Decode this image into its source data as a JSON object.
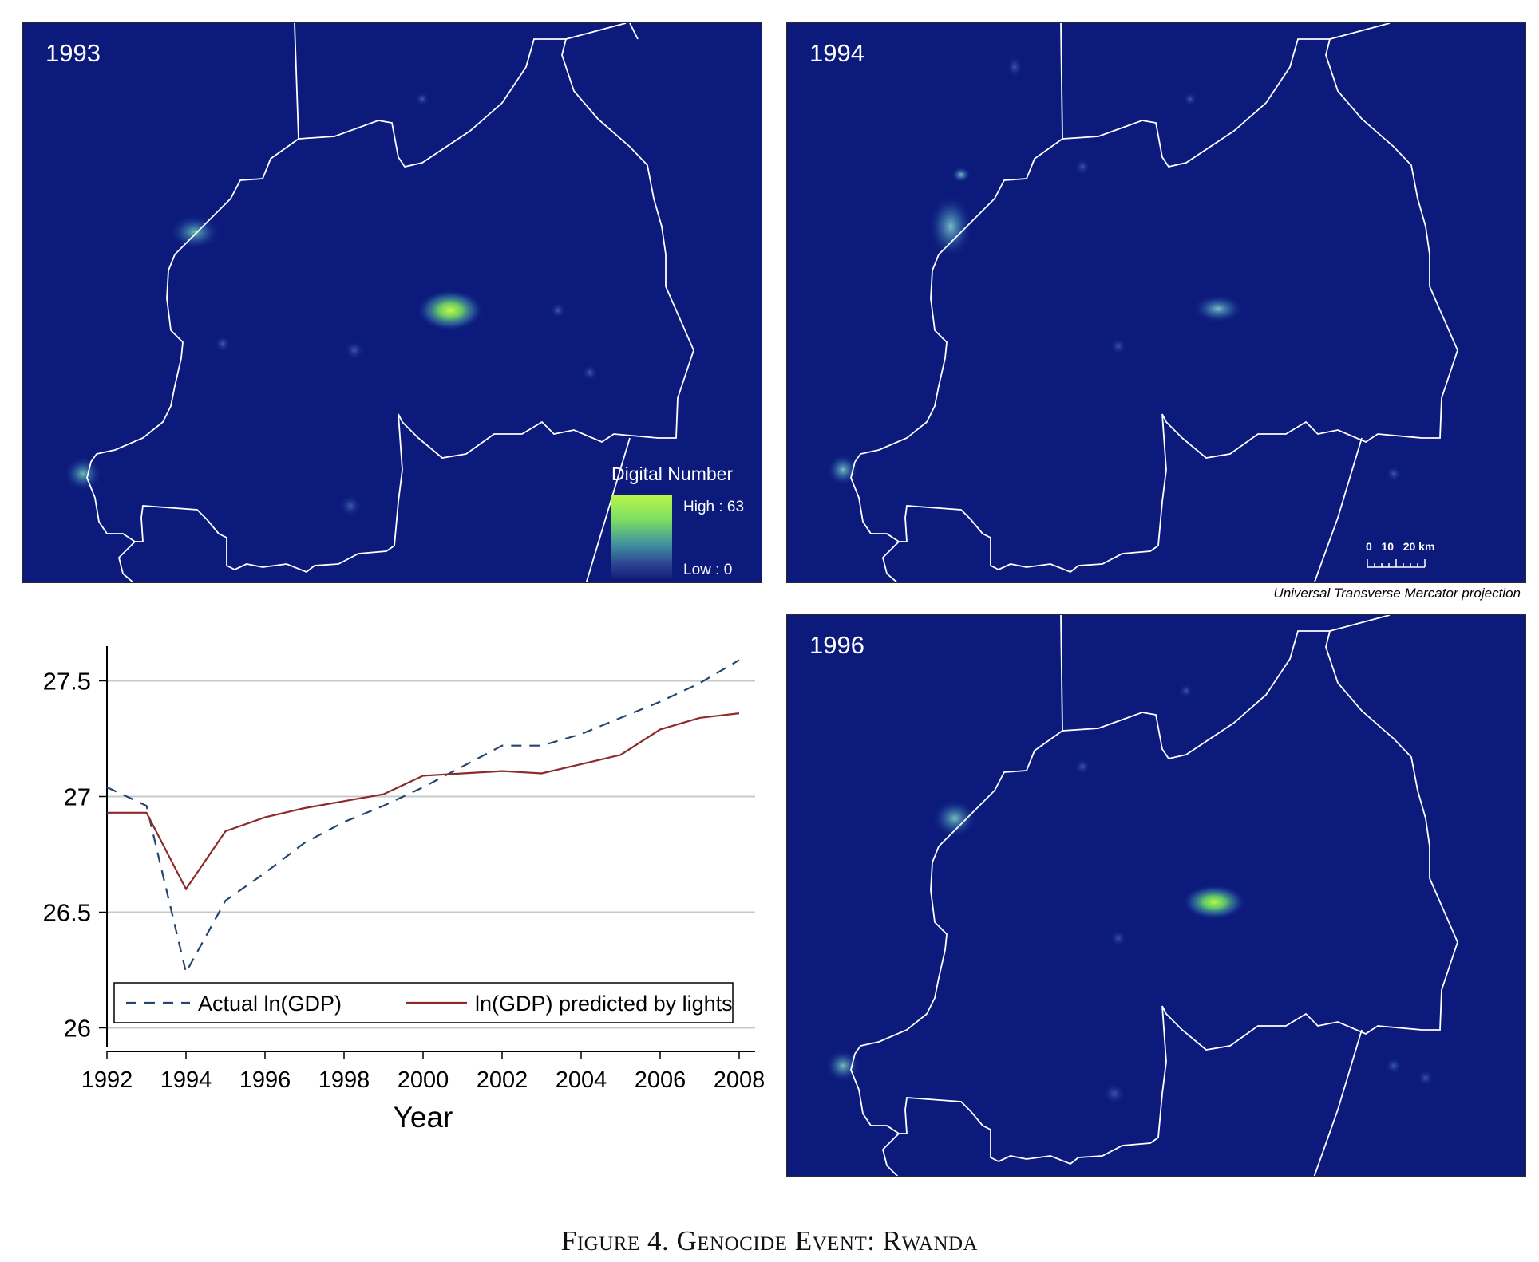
{
  "maps": {
    "panels": [
      {
        "year": "1993"
      },
      {
        "year": "1994"
      },
      {
        "year": "1996"
      }
    ],
    "legend": {
      "title": "Digital Number",
      "high": "High : 63",
      "low": "Low : 0"
    },
    "scalebar": {
      "label": "0   10   20 km"
    },
    "projection": "Universal Transverse Mercator projection",
    "colors": {
      "background": "#0c1a7c",
      "glow_high": "#b6f54a",
      "glow_mid": "#4fb0a8",
      "border": "#ffffff"
    }
  },
  "chart_data": {
    "type": "line",
    "xlabel": "Year",
    "ylabel": "",
    "x": [
      1992,
      1993,
      1994,
      1995,
      1996,
      1997,
      1998,
      1999,
      2000,
      2001,
      2002,
      2003,
      2004,
      2005,
      2006,
      2007,
      2008
    ],
    "xticks": [
      "1992",
      "1994",
      "1996",
      "1998",
      "2000",
      "2002",
      "2004",
      "2006",
      "2008"
    ],
    "yticks": [
      "26",
      "26.5",
      "27",
      "27.5"
    ],
    "ylim": [
      25.95,
      27.65
    ],
    "xlim": [
      1992,
      2008
    ],
    "grid": true,
    "legend_position": "bottom",
    "series": [
      {
        "name": "Actual ln(GDP)",
        "style": "dashed",
        "color": "#24466e",
        "values": [
          27.04,
          26.96,
          26.24,
          26.55,
          26.67,
          26.8,
          26.89,
          26.96,
          27.04,
          27.13,
          27.22,
          27.22,
          27.27,
          27.34,
          27.41,
          27.49,
          27.59
        ]
      },
      {
        "name": "ln(GDP) predicted by lights",
        "style": "solid",
        "color": "#8b2b2b",
        "values": [
          26.93,
          26.93,
          26.6,
          26.85,
          26.91,
          26.95,
          26.98,
          27.01,
          27.09,
          27.1,
          27.11,
          27.1,
          27.14,
          27.18,
          27.29,
          27.34,
          27.36
        ]
      }
    ]
  },
  "caption": "Figure 4. Genocide Event: Rwanda"
}
